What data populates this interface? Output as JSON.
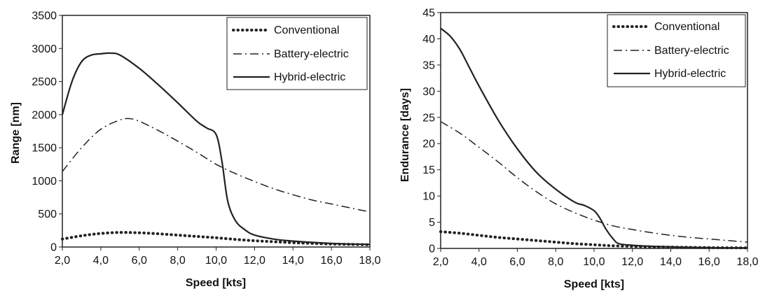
{
  "chart_data": [
    {
      "type": "line",
      "xlabel": "Speed [kts]",
      "ylabel": "Range [nm]",
      "xlim": [
        2,
        18
      ],
      "ylim": [
        0,
        3500
      ],
      "x_ticks": [
        "2,0",
        "4,0",
        "6,0",
        "8,0",
        "10,0",
        "12,0",
        "14,0",
        "16,0",
        "18,0"
      ],
      "y_ticks": [
        "0",
        "500",
        "1000",
        "1500",
        "2000",
        "2500",
        "3000",
        "3500"
      ],
      "legend_position": "top-right",
      "series": [
        {
          "name": "Conventional",
          "style": "dotted",
          "x": [
            2,
            3,
            4,
            5,
            6,
            7,
            8,
            9,
            10,
            11,
            12,
            13,
            14,
            15,
            16,
            17,
            18
          ],
          "y": [
            120,
            170,
            205,
            220,
            215,
            200,
            180,
            160,
            140,
            115,
            95,
            80,
            65,
            55,
            45,
            40,
            35
          ]
        },
        {
          "name": "Battery-electric",
          "style": "dashdot",
          "x": [
            2,
            3,
            4,
            5,
            5.5,
            6,
            7,
            8,
            9,
            10,
            11,
            12,
            13,
            14,
            15,
            16,
            17,
            18
          ],
          "y": [
            1140,
            1500,
            1780,
            1920,
            1940,
            1900,
            1760,
            1600,
            1430,
            1250,
            1110,
            990,
            880,
            790,
            710,
            650,
            590,
            530
          ]
        },
        {
          "name": "Hybrid-electric",
          "style": "solid",
          "x": [
            2,
            2.5,
            3,
            3.5,
            4,
            4.5,
            5,
            6,
            7,
            8,
            9,
            9.5,
            10,
            10.3,
            10.6,
            11,
            11.5,
            12,
            13,
            14,
            15,
            16,
            17,
            18
          ],
          "y": [
            2000,
            2500,
            2800,
            2900,
            2920,
            2930,
            2900,
            2700,
            2450,
            2180,
            1900,
            1800,
            1700,
            1300,
            700,
            400,
            260,
            180,
            120,
            90,
            70,
            55,
            45,
            40
          ]
        }
      ]
    },
    {
      "type": "line",
      "xlabel": "Speed [kts]",
      "ylabel": "Endurance [days]",
      "xlim": [
        2,
        18
      ],
      "ylim": [
        0,
        45
      ],
      "x_ticks": [
        "2,0",
        "4,0",
        "6,0",
        "8,0",
        "10,0",
        "12,0",
        "14,0",
        "16,0",
        "18,0"
      ],
      "y_ticks": [
        "0",
        "5",
        "10",
        "15",
        "20",
        "25",
        "30",
        "35",
        "40",
        "45"
      ],
      "legend_position": "top-right",
      "series": [
        {
          "name": "Conventional",
          "style": "dotted",
          "x": [
            2,
            3,
            4,
            5,
            6,
            7,
            8,
            9,
            10,
            11,
            12,
            13,
            14,
            15,
            16,
            17,
            18
          ],
          "y": [
            3.2,
            2.9,
            2.5,
            2.1,
            1.8,
            1.5,
            1.2,
            0.9,
            0.7,
            0.5,
            0.4,
            0.3,
            0.25,
            0.2,
            0.15,
            0.12,
            0.1
          ]
        },
        {
          "name": "Battery-electric",
          "style": "dashdot",
          "x": [
            2,
            3,
            4,
            5,
            6,
            7,
            8,
            9,
            10,
            11,
            12,
            13,
            14,
            15,
            16,
            17,
            18
          ],
          "y": [
            24.2,
            22,
            19.3,
            16.5,
            13.5,
            10.8,
            8.5,
            6.8,
            5.4,
            4.3,
            3.6,
            3.0,
            2.5,
            2.1,
            1.8,
            1.5,
            1.2
          ]
        },
        {
          "name": "Hybrid-electric",
          "style": "solid",
          "x": [
            2,
            2.5,
            3,
            3.5,
            4,
            5,
            6,
            7,
            8,
            9,
            9.5,
            10,
            10.3,
            10.6,
            11,
            11.3,
            12,
            13,
            14,
            15,
            16,
            17,
            18
          ],
          "y": [
            42,
            40.5,
            38,
            34.5,
            31,
            24.5,
            19,
            14.5,
            11.3,
            8.8,
            8.2,
            7.2,
            5.8,
            3.8,
            1.8,
            0.9,
            0.6,
            0.4,
            0.3,
            0.2,
            0.15,
            0.1,
            0.1
          ]
        }
      ]
    }
  ]
}
